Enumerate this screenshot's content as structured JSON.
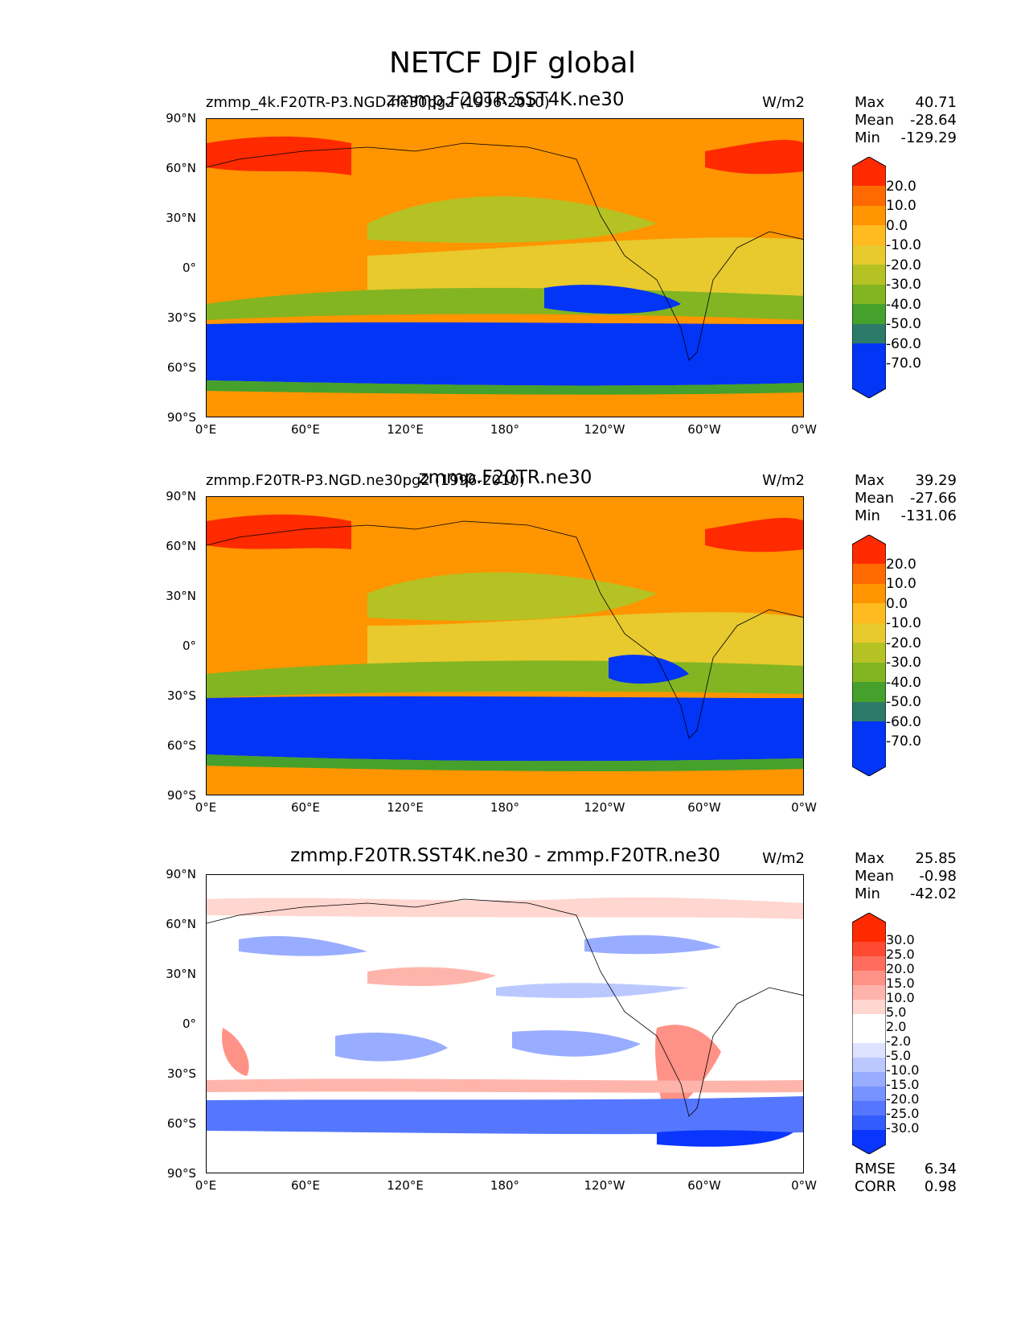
{
  "figure": {
    "title": "NETCF DJF global"
  },
  "panels": [
    {
      "left_title": "zmmp_4k.F20TR-P3.NGD.ne30pg2 (1996-2010)",
      "center_title": "zmmp.F20TR.SST4K.ne30",
      "unit": "W/m2",
      "stats": [
        {
          "label": "Max",
          "value": "40.71"
        },
        {
          "label": "Mean",
          "value": "-28.64"
        },
        {
          "label": "Min",
          "value": "-129.29"
        }
      ],
      "colorbar_labels": [
        "20.0",
        "10.0",
        "0.0",
        "-10.0",
        "-20.0",
        "-30.0",
        "-40.0",
        "-50.0",
        "-60.0",
        "-70.0"
      ]
    },
    {
      "left_title": "zmmp.F20TR-P3.NGD.ne30pg2 (1996-2010)",
      "center_title": "zmmp.F20TR.ne30",
      "unit": "W/m2",
      "stats": [
        {
          "label": "Max",
          "value": "39.29"
        },
        {
          "label": "Mean",
          "value": "-27.66"
        },
        {
          "label": "Min",
          "value": "-131.06"
        }
      ],
      "colorbar_labels": [
        "20.0",
        "10.0",
        "0.0",
        "-10.0",
        "-20.0",
        "-30.0",
        "-40.0",
        "-50.0",
        "-60.0",
        "-70.0"
      ]
    },
    {
      "left_title": "",
      "center_title": "zmmp.F20TR.SST4K.ne30 - zmmp.F20TR.ne30",
      "unit": "W/m2",
      "stats": [
        {
          "label": "Max",
          "value": "25.85"
        },
        {
          "label": "Mean",
          "value": "-0.98"
        },
        {
          "label": "Min",
          "value": "-42.02"
        }
      ],
      "colorbar_labels": [
        "30.0",
        "25.0",
        "20.0",
        "15.0",
        "10.0",
        "5.0",
        "2.0",
        "-2.0",
        "-5.0",
        "-10.0",
        "-15.0",
        "-20.0",
        "-25.0",
        "-30.0"
      ],
      "extra_stats": [
        {
          "label": "RMSE",
          "value": "6.34"
        },
        {
          "label": "CORR",
          "value": "0.98"
        }
      ]
    }
  ],
  "axes": {
    "lat_ticks": [
      "90°N",
      "60°N",
      "30°N",
      "0°",
      "30°S",
      "60°S",
      "90°S"
    ],
    "lon_ticks": [
      "0°E",
      "60°E",
      "120°E",
      "180°",
      "120°W",
      "60°W",
      "0°W"
    ]
  },
  "colors": {
    "model_scale": [
      "#ff2a00",
      "#ff6a00",
      "#ff9500",
      "#ffbb1f",
      "#e8c92e",
      "#b5c224",
      "#82b521",
      "#45a12b",
      "#2c7a6a",
      "#0235f5"
    ],
    "diff_scale": [
      "#ff2a00",
      "#ff4a32",
      "#ff6d5e",
      "#ff9286",
      "#ffb4ab",
      "#ffd6d0",
      "#ffffff",
      "#dce2ff",
      "#bac8ff",
      "#98adff",
      "#7692ff",
      "#5577ff",
      "#335cff",
      "#0a35ff"
    ]
  }
}
